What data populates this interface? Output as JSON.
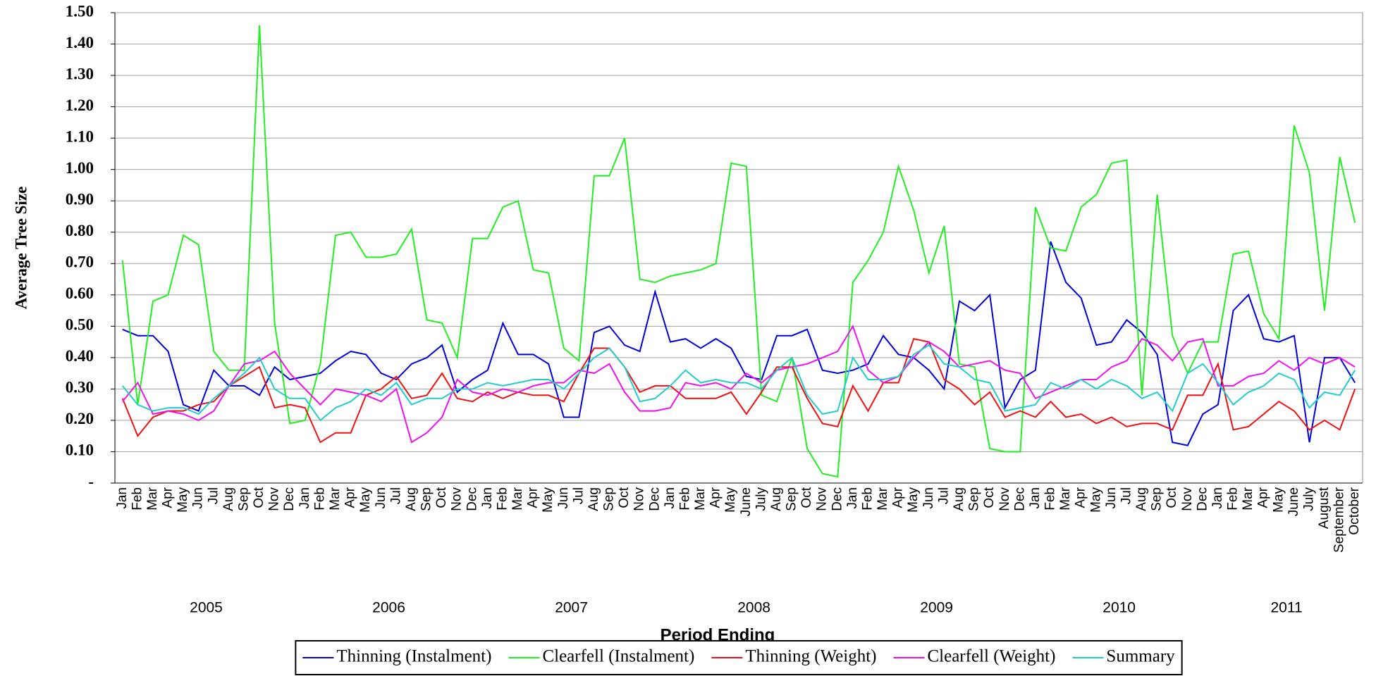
{
  "chart_data": {
    "type": "line",
    "y_label": "Average Tree Size",
    "x_label": "Period Ending",
    "categories": [
      "Jan",
      "Feb",
      "Mar",
      "Apr",
      "May",
      "Jun",
      "Jul",
      "Aug",
      "Sep",
      "Oct",
      "Nov",
      "Dec",
      "Jan",
      "Feb",
      "Mar",
      "Apr",
      "May",
      "Jun",
      "Jul",
      "Aug",
      "Sep",
      "Oct",
      "Nov",
      "Dec",
      "Jan",
      "Feb",
      "Mar",
      "Apr",
      "May",
      "Jun",
      "Jul",
      "Aug",
      "Sep",
      "Oct",
      "Nov",
      "Dec",
      "Jan",
      "Feb",
      "Mar",
      "Apr",
      "May",
      "June",
      "July",
      "Aug",
      "Sep",
      "Oct",
      "Nov",
      "Dec",
      "Jan",
      "Feb",
      "Mar",
      "Apr",
      "May",
      "Jun",
      "Jul",
      "Aug",
      "Sep",
      "Oct",
      "Nov",
      "Dec",
      "Jan",
      "Feb",
      "Mar",
      "Apr",
      "May",
      "Jun",
      "Jul",
      "Aug",
      "Sep",
      "Oct",
      "Nov",
      "Dec",
      "Jan",
      "Feb",
      "Mar",
      "Apr",
      "May",
      "June",
      "July",
      "August",
      "September",
      "October"
    ],
    "x_groups": [
      {
        "label": "2005",
        "size": 12
      },
      {
        "label": "2006",
        "size": 12
      },
      {
        "label": "2007",
        "size": 12
      },
      {
        "label": "2008",
        "size": 12
      },
      {
        "label": "2009",
        "size": 12
      },
      {
        "label": "2010",
        "size": 12
      },
      {
        "label": "2011",
        "size": 10
      }
    ],
    "ylim": [
      0,
      1.5
    ],
    "yticks": [
      {
        "value": 0,
        "label": "-"
      },
      {
        "value": 0.1,
        "label": "0.10"
      },
      {
        "value": 0.2,
        "label": "0.20"
      },
      {
        "value": 0.3,
        "label": "0.30"
      },
      {
        "value": 0.4,
        "label": "0.40"
      },
      {
        "value": 0.5,
        "label": "0.50"
      },
      {
        "value": 0.6,
        "label": "0.60"
      },
      {
        "value": 0.7,
        "label": "0.70"
      },
      {
        "value": 0.8,
        "label": "0.80"
      },
      {
        "value": 0.9,
        "label": "0.90"
      },
      {
        "value": 1.0,
        "label": "1.00"
      },
      {
        "value": 1.1,
        "label": "1.10"
      },
      {
        "value": 1.2,
        "label": "1.20"
      },
      {
        "value": 1.3,
        "label": "1.30"
      },
      {
        "value": 1.4,
        "label": "1.40"
      },
      {
        "value": 1.5,
        "label": "1.50"
      }
    ],
    "grid": true,
    "legend": "bottom",
    "series": [
      {
        "name": "Thinning (Instalment)",
        "color": "#0000dd",
        "values": [
          0.49,
          0.47,
          0.47,
          0.42,
          0.25,
          0.23,
          0.36,
          0.31,
          0.31,
          0.28,
          0.37,
          0.33,
          0.34,
          0.35,
          0.39,
          0.42,
          0.41,
          0.35,
          0.33,
          0.38,
          0.4,
          0.44,
          0.29,
          0.33,
          0.36,
          0.51,
          0.41,
          0.41,
          0.38,
          0.21,
          0.21,
          0.48,
          0.5,
          0.44,
          0.42,
          0.61,
          0.45,
          0.46,
          0.43,
          0.46,
          0.43,
          0.34,
          0.33,
          0.47,
          0.47,
          0.49,
          0.36,
          0.35,
          0.36,
          0.38,
          0.47,
          0.41,
          0.4,
          0.36,
          0.3,
          0.58,
          0.55,
          0.6,
          0.24,
          0.33,
          0.36,
          0.77,
          0.64,
          0.59,
          0.44,
          0.45,
          0.52,
          0.48,
          0.41,
          0.13,
          0.12,
          0.22,
          0.25,
          0.55,
          0.6,
          0.46,
          0.45,
          0.47,
          0.13,
          0.4,
          0.4,
          0.32
        ]
      },
      {
        "name": "Clearfell (Instalment)",
        "color": "#22ee22",
        "values": [
          0.71,
          0.25,
          0.58,
          0.6,
          0.79,
          0.76,
          0.42,
          0.36,
          0.36,
          1.46,
          0.51,
          0.19,
          0.2,
          0.38,
          0.79,
          0.8,
          0.72,
          0.72,
          0.73,
          0.81,
          0.52,
          0.51,
          0.4,
          0.78,
          0.78,
          0.88,
          0.9,
          0.68,
          0.67,
          0.43,
          0.39,
          0.98,
          0.98,
          1.1,
          0.65,
          0.64,
          0.66,
          0.67,
          0.68,
          0.7,
          1.02,
          1.01,
          0.28,
          0.26,
          0.4,
          0.11,
          0.03,
          0.02,
          0.64,
          0.71,
          0.8,
          1.01,
          0.87,
          0.67,
          0.82,
          0.38,
          0.37,
          0.11,
          0.1,
          0.1,
          0.88,
          0.75,
          0.74,
          0.88,
          0.92,
          1.02,
          1.03,
          0.28,
          0.92,
          0.47,
          0.35,
          0.45,
          0.45,
          0.73,
          0.74,
          0.54,
          0.46,
          1.14,
          0.99,
          0.55,
          1.04,
          0.83
        ]
      },
      {
        "name": "Thinning (Weight)",
        "color": "#ee1111",
        "values": [
          0.27,
          0.15,
          0.21,
          0.23,
          0.23,
          0.25,
          0.26,
          0.31,
          0.34,
          0.37,
          0.24,
          0.25,
          0.24,
          0.13,
          0.16,
          0.16,
          0.28,
          0.3,
          0.34,
          0.27,
          0.28,
          0.35,
          0.27,
          0.26,
          0.29,
          0.27,
          0.29,
          0.28,
          0.28,
          0.26,
          0.35,
          0.43,
          0.43,
          0.37,
          0.29,
          0.31,
          0.31,
          0.27,
          0.27,
          0.27,
          0.29,
          0.22,
          0.29,
          0.37,
          0.37,
          0.27,
          0.19,
          0.18,
          0.31,
          0.23,
          0.32,
          0.32,
          0.46,
          0.45,
          0.33,
          0.3,
          0.25,
          0.29,
          0.21,
          0.23,
          0.21,
          0.26,
          0.21,
          0.22,
          0.19,
          0.21,
          0.18,
          0.19,
          0.19,
          0.17,
          0.28,
          0.28,
          0.38,
          0.17,
          0.18,
          0.22,
          0.26,
          0.23,
          0.17,
          0.2,
          0.17,
          0.3
        ]
      },
      {
        "name": "Clearfell (Weight)",
        "color": "#ee11ee",
        "values": [
          0.26,
          0.32,
          0.22,
          0.23,
          0.22,
          0.2,
          0.23,
          0.31,
          0.38,
          0.39,
          0.42,
          0.35,
          0.3,
          0.25,
          0.3,
          0.29,
          0.28,
          0.26,
          0.3,
          0.13,
          0.16,
          0.21,
          0.33,
          0.29,
          0.28,
          0.3,
          0.29,
          0.31,
          0.32,
          0.32,
          0.36,
          0.35,
          0.38,
          0.29,
          0.23,
          0.23,
          0.24,
          0.32,
          0.31,
          0.32,
          0.3,
          0.35,
          0.32,
          0.36,
          0.37,
          0.38,
          0.4,
          0.42,
          0.5,
          0.36,
          0.32,
          0.34,
          0.4,
          0.45,
          0.42,
          0.37,
          0.38,
          0.39,
          0.36,
          0.35,
          0.27,
          0.29,
          0.31,
          0.33,
          0.33,
          0.37,
          0.39,
          0.46,
          0.44,
          0.39,
          0.45,
          0.46,
          0.31,
          0.31,
          0.34,
          0.35,
          0.39,
          0.36,
          0.4,
          0.38,
          0.4,
          0.37
        ]
      },
      {
        "name": "Summary",
        "color": "#22cccc",
        "values": [
          0.31,
          0.25,
          0.23,
          0.24,
          0.24,
          0.22,
          0.27,
          0.31,
          0.35,
          0.4,
          0.3,
          0.27,
          0.27,
          0.2,
          0.24,
          0.26,
          0.3,
          0.28,
          0.32,
          0.25,
          0.27,
          0.27,
          0.3,
          0.3,
          0.32,
          0.31,
          0.32,
          0.33,
          0.33,
          0.3,
          0.35,
          0.4,
          0.43,
          0.37,
          0.26,
          0.27,
          0.31,
          0.36,
          0.32,
          0.33,
          0.32,
          0.32,
          0.3,
          0.36,
          0.4,
          0.28,
          0.22,
          0.23,
          0.4,
          0.33,
          0.33,
          0.34,
          0.41,
          0.44,
          0.38,
          0.37,
          0.33,
          0.32,
          0.23,
          0.24,
          0.25,
          0.32,
          0.3,
          0.33,
          0.3,
          0.33,
          0.31,
          0.27,
          0.29,
          0.23,
          0.35,
          0.38,
          0.32,
          0.25,
          0.29,
          0.31,
          0.35,
          0.33,
          0.24,
          0.29,
          0.28,
          0.36
        ]
      }
    ]
  }
}
